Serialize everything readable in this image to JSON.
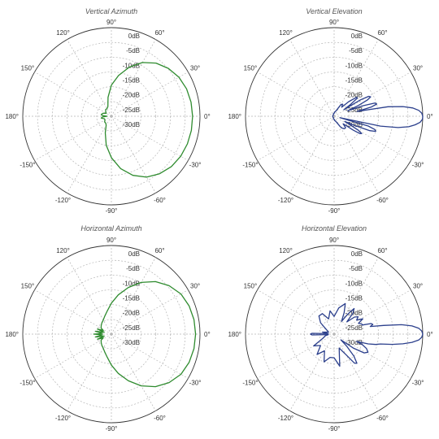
{
  "chart_data": [
    {
      "type": "polar",
      "title": "Vertical Azimuth",
      "r_tick_labels": [
        "0dB",
        "-5dB",
        "-10dB",
        "-15dB",
        "-20dB",
        "-25dB",
        "-30dB"
      ],
      "r_range_db": [
        -30,
        0
      ],
      "angle_tick_labels": [
        "0°",
        "30°",
        "60°",
        "90°",
        "120°",
        "150°",
        "180°",
        "-150°",
        "-120°",
        "-90°",
        "-60°",
        "-30°"
      ],
      "grid": true,
      "color": "#2e8b2e",
      "series": [
        {
          "angles_deg": [
            0,
            10,
            20,
            30,
            40,
            50,
            60,
            70,
            80,
            90,
            100,
            110,
            120,
            130,
            140,
            150,
            160,
            170,
            175,
            180,
            185,
            190,
            200,
            210,
            220,
            230,
            240,
            250,
            260,
            270,
            280,
            290,
            300,
            310,
            320,
            330,
            340,
            350
          ],
          "gain_db": [
            -2.5,
            -2.6,
            -2.9,
            -3.6,
            -4.8,
            -6.5,
            -9,
            -12.3,
            -16,
            -19.5,
            -23.5,
            -26.5,
            -27,
            -27,
            -27.5,
            -28,
            -27,
            -26.5,
            -27,
            -28.5,
            -27,
            -26.5,
            -27.5,
            -27.5,
            -27,
            -27,
            -26.5,
            -24,
            -20,
            -16,
            -12,
            -8.7,
            -6.2,
            -4.6,
            -3.5,
            -2.9,
            -2.6,
            -2.5
          ]
        }
      ]
    },
    {
      "type": "polar",
      "title": "Vertical Elevation",
      "r_tick_labels": [
        "0dB",
        "-5dB",
        "-10dB",
        "-15dB",
        "-20dB",
        "-25dB",
        "-30dB"
      ],
      "r_range_db": [
        -30,
        0
      ],
      "angle_tick_labels": [
        "0°",
        "30°",
        "60°",
        "90°",
        "120°",
        "150°",
        "180°",
        "-150°",
        "-120°",
        "-90°",
        "-60°",
        "-30°"
      ],
      "grid": true,
      "color": "#2b3f8c",
      "series": [
        {
          "angles_deg": [
            0,
            2,
            4,
            6,
            8,
            10,
            12,
            14,
            16,
            18,
            20,
            22,
            24,
            26,
            28,
            30,
            32,
            34,
            36,
            38,
            40,
            45,
            50,
            55,
            60,
            70,
            80,
            90,
            100,
            120,
            140,
            160,
            180,
            200,
            220,
            240,
            260,
            270,
            280,
            290,
            300,
            305,
            310,
            315,
            320,
            322,
            324,
            326,
            328,
            330,
            332,
            334,
            336,
            338,
            340,
            342,
            344,
            346,
            348,
            350,
            352,
            354,
            356,
            358
          ],
          "gain_db": [
            0,
            -0.3,
            -1.3,
            -3.2,
            -6.5,
            -11.5,
            -22,
            -17,
            -15,
            -15.5,
            -19.5,
            -25,
            -21,
            -17.5,
            -16,
            -16.5,
            -19.5,
            -26,
            -23,
            -20,
            -20,
            -23,
            -26,
            -25,
            -25.5,
            -28,
            -28.5,
            -29,
            -29,
            -29.5,
            -29.5,
            -29.5,
            -29.5,
            -29.5,
            -29.5,
            -29.5,
            -29,
            -29,
            -28.5,
            -28,
            -26,
            -25,
            -24.5,
            -24.5,
            -26,
            -25,
            -22,
            -19.5,
            -19,
            -20.5,
            -24,
            -26,
            -22,
            -17,
            -15,
            -15.5,
            -18,
            -28,
            -14,
            -8,
            -4.5,
            -2.4,
            -0.8,
            -0.1
          ]
        }
      ]
    },
    {
      "type": "polar",
      "title": "Horizontal Azimuth",
      "r_tick_labels": [
        "0dB",
        "-5dB",
        "-10dB",
        "-15dB",
        "-20dB",
        "-25dB",
        "-30dB"
      ],
      "r_range_db": [
        -30,
        0
      ],
      "angle_tick_labels": [
        "0°",
        "30°",
        "60°",
        "90°",
        "120°",
        "150°",
        "180°",
        "-150°",
        "-120°",
        "-90°",
        "-60°",
        "-30°"
      ],
      "grid": true,
      "color": "#2e8b2e",
      "series": [
        {
          "angles_deg": [
            0,
            10,
            20,
            30,
            40,
            50,
            60,
            70,
            80,
            90,
            100,
            110,
            120,
            130,
            140,
            150,
            155,
            160,
            165,
            170,
            175,
            180,
            185,
            190,
            195,
            200,
            205,
            210,
            220,
            230,
            240,
            250,
            260,
            270,
            280,
            290,
            300,
            310,
            320,
            330,
            340,
            350
          ],
          "gain_db": [
            -1.5,
            -1.6,
            -2,
            -2.8,
            -4.5,
            -6.8,
            -9.8,
            -13.2,
            -16.5,
            -19.5,
            -22,
            -23.5,
            -24.5,
            -25,
            -25.5,
            -26,
            -27,
            -25,
            -27.5,
            -24.5,
            -27,
            -24,
            -27,
            -24.5,
            -27.5,
            -25,
            -27,
            -26,
            -25.5,
            -25,
            -24.5,
            -23.5,
            -22,
            -19.5,
            -16.5,
            -13.2,
            -9.8,
            -6.8,
            -4.5,
            -2.8,
            -2,
            -1.6
          ]
        }
      ]
    },
    {
      "type": "polar",
      "title": "Horizontal Elevation",
      "r_tick_labels": [
        "0dB",
        "-5dB",
        "-10dB",
        "-15dB",
        "-20dB",
        "-25dB",
        "-30dB"
      ],
      "r_range_db": [
        -30,
        0
      ],
      "angle_tick_labels": [
        "0°",
        "30°",
        "60°",
        "90°",
        "120°",
        "150°",
        "180°",
        "-150°",
        "-120°",
        "-90°",
        "-60°",
        "-30°"
      ],
      "grid": true,
      "color": "#2b3f8c",
      "series": [
        {
          "angles_deg": [
            0,
            2,
            4,
            6,
            8,
            10,
            12,
            14,
            16,
            18,
            20,
            24,
            28,
            32,
            36,
            40,
            44,
            48,
            52,
            56,
            60,
            65,
            70,
            80,
            90,
            100,
            110,
            120,
            130,
            140,
            150,
            160,
            170,
            175,
            178,
            180,
            182,
            185,
            190,
            200,
            210,
            220,
            230,
            240,
            250,
            260,
            270,
            280,
            290,
            300,
            305,
            308,
            312,
            316,
            320,
            324,
            328,
            332,
            336,
            340,
            342,
            344,
            346,
            348,
            350,
            352,
            354,
            356,
            358
          ],
          "gain_db": [
            0,
            -0.3,
            -1.3,
            -3.5,
            -7,
            -13,
            -17.5,
            -16.5,
            -17,
            -20,
            -20,
            -21,
            -19,
            -21,
            -20,
            -21,
            -24,
            -20.5,
            -19,
            -22,
            -25,
            -22,
            -19,
            -21,
            -24,
            -22,
            -24.5,
            -22,
            -22,
            -24,
            -27,
            -28,
            -26,
            -28,
            -22.5,
            -22,
            -22.5,
            -28,
            -27,
            -26,
            -22,
            -24,
            -21,
            -23.5,
            -20,
            -22,
            -22,
            -19,
            -25,
            -22,
            -18,
            -17.5,
            -20,
            -24,
            -27,
            -22,
            -18,
            -17,
            -18,
            -20,
            -22,
            -18,
            -15.5,
            -14,
            -10,
            -6.5,
            -3.5,
            -1.3,
            -0.3
          ]
        }
      ]
    }
  ]
}
